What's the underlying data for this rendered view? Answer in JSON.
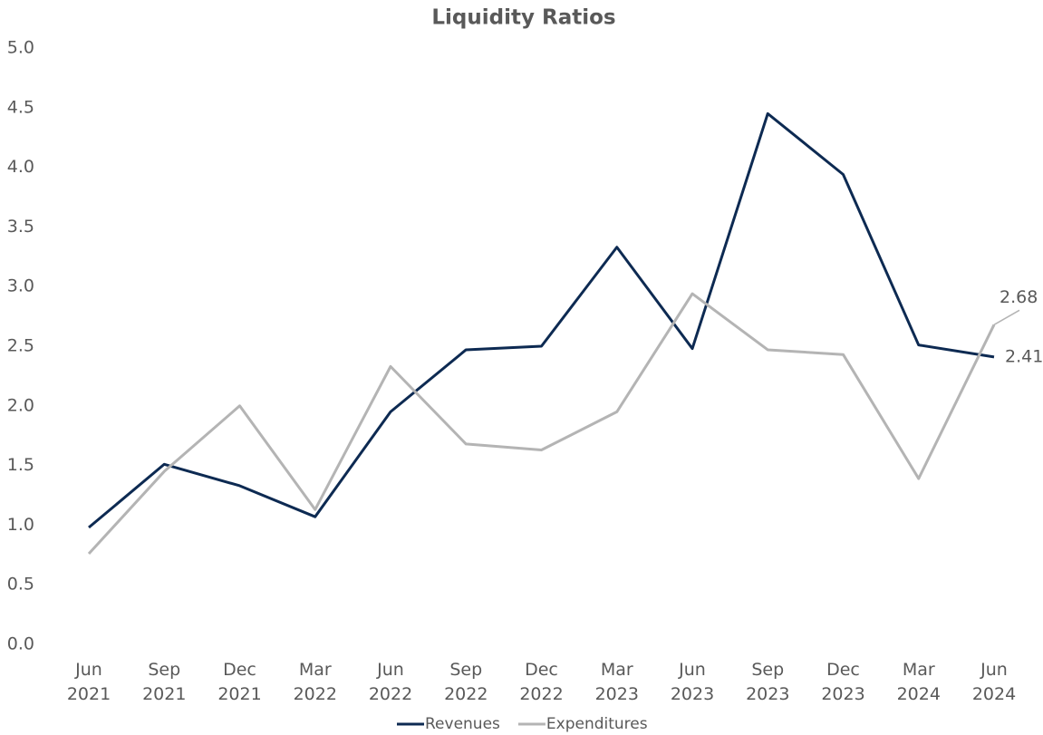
{
  "chart_data": {
    "type": "line",
    "title": "Liquidity Ratios",
    "categories": [
      "Jun 2021",
      "Sep 2021",
      "Dec 2021",
      "Mar 2022",
      "Jun 2022",
      "Sep 2022",
      "Dec 2022",
      "Mar 2023",
      "Jun 2023",
      "Sep 2023",
      "Dec 2023",
      "Mar 2024",
      "Jun 2024"
    ],
    "series": [
      {
        "name": "Revenues",
        "color": "#0d2a52",
        "values": [
          0.98,
          1.51,
          1.33,
          1.07,
          1.95,
          2.47,
          2.5,
          3.33,
          2.48,
          4.45,
          3.94,
          2.51,
          2.41
        ]
      },
      {
        "name": "Expenditures",
        "color": "#b4b4b4",
        "values": [
          0.76,
          1.45,
          2.0,
          1.13,
          2.33,
          1.68,
          1.63,
          1.95,
          2.94,
          2.47,
          2.43,
          1.39,
          2.68
        ]
      }
    ],
    "label_last_point": true,
    "ylim": [
      0,
      5
    ],
    "yticks": [
      {
        "value": 0,
        "label": "0.0"
      },
      0.5,
      {
        "value": 1,
        "label": "1.0"
      },
      1.5,
      {
        "value": 2,
        "label": "2.0"
      },
      2.5,
      {
        "value": 3,
        "label": "3.0"
      },
      3.5,
      {
        "value": 4,
        "label": "4.0"
      },
      4.5,
      {
        "value": 5,
        "label": "5.0"
      }
    ],
    "grid": false,
    "legend": "bottom"
  }
}
